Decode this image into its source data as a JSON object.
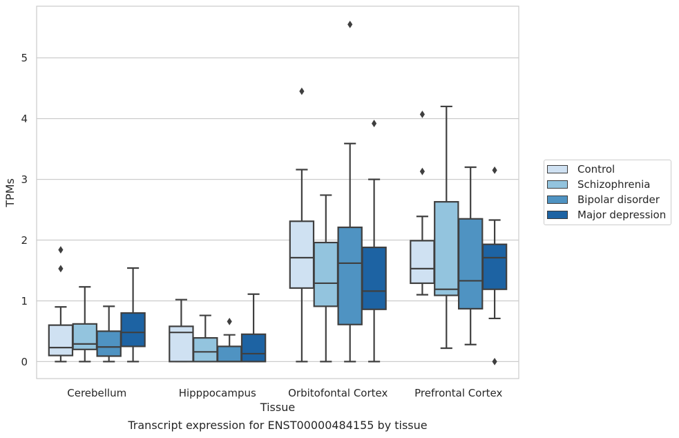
{
  "caption": "Transcript expression for ENST00000484155 by tissue",
  "chart_data": {
    "type": "box",
    "xlabel": "Tissue",
    "ylabel": "TPMs",
    "ylim": [
      -0.28,
      5.85
    ],
    "yticks": [
      0,
      1,
      2,
      3,
      4,
      5
    ],
    "grid": true,
    "legend_position": "right",
    "categories": [
      "Cerebellum",
      "Hipppocampus",
      "Orbitofontal Cortex",
      "Prefrontal Cortex"
    ],
    "series": [
      {
        "name": "Control",
        "color": "#cfe1f2",
        "boxes": [
          {
            "whisker_low": 0.0,
            "q1": 0.1,
            "median": 0.23,
            "q3": 0.6,
            "whisker_high": 0.9,
            "outliers": [
              1.53,
              1.84
            ]
          },
          {
            "whisker_low": 0.0,
            "q1": 0.0,
            "median": 0.48,
            "q3": 0.58,
            "whisker_high": 1.02,
            "outliers": []
          },
          {
            "whisker_low": 0.0,
            "q1": 1.21,
            "median": 1.71,
            "q3": 2.31,
            "whisker_high": 3.16,
            "outliers": [
              4.45
            ]
          },
          {
            "whisker_low": 1.1,
            "q1": 1.29,
            "median": 1.53,
            "q3": 1.99,
            "whisker_high": 2.39,
            "outliers": [
              3.13,
              4.07
            ]
          }
        ]
      },
      {
        "name": "Schizophrenia",
        "color": "#93c4de",
        "boxes": [
          {
            "whisker_low": 0.0,
            "q1": 0.2,
            "median": 0.29,
            "q3": 0.62,
            "whisker_high": 1.23,
            "outliers": []
          },
          {
            "whisker_low": 0.0,
            "q1": 0.0,
            "median": 0.16,
            "q3": 0.39,
            "whisker_high": 0.76,
            "outliers": []
          },
          {
            "whisker_low": 0.0,
            "q1": 0.91,
            "median": 1.29,
            "q3": 1.96,
            "whisker_high": 2.74,
            "outliers": []
          },
          {
            "whisker_low": 0.22,
            "q1": 1.09,
            "median": 1.19,
            "q3": 2.63,
            "whisker_high": 4.2,
            "outliers": []
          }
        ]
      },
      {
        "name": "Bipolar disorder",
        "color": "#4f93c2",
        "boxes": [
          {
            "whisker_low": 0.0,
            "q1": 0.09,
            "median": 0.24,
            "q3": 0.5,
            "whisker_high": 0.91,
            "outliers": []
          },
          {
            "whisker_low": 0.0,
            "q1": 0.0,
            "median": 0.0,
            "q3": 0.25,
            "whisker_high": 0.44,
            "outliers": [
              0.66
            ]
          },
          {
            "whisker_low": 0.0,
            "q1": 0.61,
            "median": 1.62,
            "q3": 2.21,
            "whisker_high": 3.59,
            "outliers": [
              5.55
            ]
          },
          {
            "whisker_low": 0.28,
            "q1": 0.87,
            "median": 1.33,
            "q3": 2.35,
            "whisker_high": 3.2,
            "outliers": []
          }
        ]
      },
      {
        "name": "Major depression",
        "color": "#1d63a3",
        "boxes": [
          {
            "whisker_low": 0.0,
            "q1": 0.25,
            "median": 0.48,
            "q3": 0.8,
            "whisker_high": 1.54,
            "outliers": []
          },
          {
            "whisker_low": 0.0,
            "q1": 0.0,
            "median": 0.13,
            "q3": 0.45,
            "whisker_high": 1.11,
            "outliers": []
          },
          {
            "whisker_low": 0.0,
            "q1": 0.86,
            "median": 1.16,
            "q3": 1.88,
            "whisker_high": 3.0,
            "outliers": [
              3.92
            ]
          },
          {
            "whisker_low": 0.71,
            "q1": 1.19,
            "median": 1.71,
            "q3": 1.93,
            "whisker_high": 2.33,
            "outliers": [
              0.0,
              3.15
            ]
          }
        ]
      }
    ]
  }
}
